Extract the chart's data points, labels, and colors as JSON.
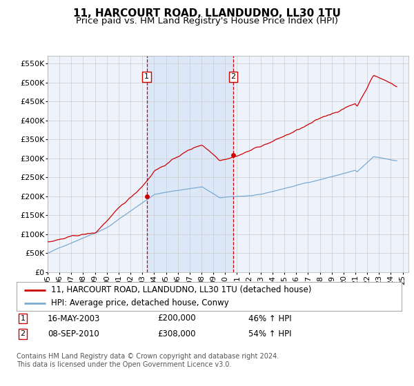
{
  "title": "11, HARCOURT ROAD, LLANDUDNO, LL30 1TU",
  "subtitle": "Price paid vs. HM Land Registry's House Price Index (HPI)",
  "ylim": [
    0,
    570000
  ],
  "yticks": [
    0,
    50000,
    100000,
    150000,
    200000,
    250000,
    300000,
    350000,
    400000,
    450000,
    500000,
    550000
  ],
  "xlim_start": 1995.0,
  "xlim_end": 2025.5,
  "sale1_x": 2003.37,
  "sale1_y": 200000,
  "sale2_x": 2010.69,
  "sale2_y": 308000,
  "background_color": "#ffffff",
  "plot_bg_color": "#eef2fb",
  "shade_color": "#dce8f8",
  "grid_color": "#cccccc",
  "hpi_line_color": "#7aaad0",
  "sale_line_color": "#cc0000",
  "sale_marker_color": "#cc0000",
  "vline_color": "#cc0000",
  "legend_label_sale": "11, HARCOURT ROAD, LLANDUDNO, LL30 1TU (detached house)",
  "legend_label_hpi": "HPI: Average price, detached house, Conwy",
  "note1_date": "16-MAY-2003",
  "note1_price": "£200,000",
  "note1_pct": "46% ↑ HPI",
  "note2_date": "08-SEP-2010",
  "note2_price": "£308,000",
  "note2_pct": "54% ↑ HPI",
  "footer": "Contains HM Land Registry data © Crown copyright and database right 2024.\nThis data is licensed under the Open Government Licence v3.0.",
  "title_fontsize": 11,
  "subtitle_fontsize": 9.5,
  "tick_fontsize": 8,
  "legend_fontsize": 8.5,
  "note_fontsize": 8.5,
  "footer_fontsize": 7
}
